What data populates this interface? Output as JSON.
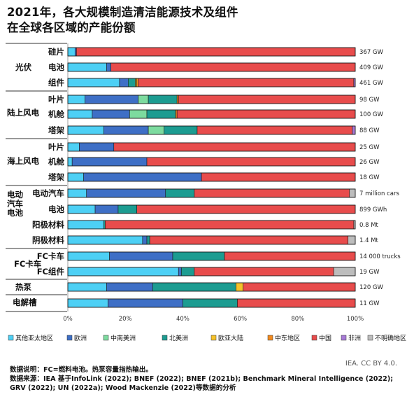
{
  "title": "2021年，各大规模制造清洁能源技术及组件\n在全球各区域的产能份额",
  "credit": "IEA. CC BY 4.0.",
  "notes": [
    "数据说明：FC=燃料电池。热泵容量指热输出。",
    "数据来源：IEA 基于InfoLink (2022); BNEF (2022); BNEF (2021b); Benchmark Mineral Intelligence (2022); GRV (2022); UN (2022a); Wood Mackenzie (2022)等数据的分析"
  ],
  "chart_data": {
    "type": "bar",
    "orientation": "horizontal",
    "stacked": "100%",
    "x_ticks": [
      "0%",
      "20%",
      "40%",
      "60%",
      "80%",
      "100%"
    ],
    "xlim": [
      0,
      100
    ],
    "grid": false,
    "legend_position": "bottom",
    "series": [
      {
        "name": "其他亚太地区",
        "color": "#4dd0f5"
      },
      {
        "name": "欧洲",
        "color": "#3e6fc6"
      },
      {
        "name": "中南美洲",
        "color": "#7ddb9f"
      },
      {
        "name": "北美洲",
        "color": "#1c9c91"
      },
      {
        "name": "欧亚大陆",
        "color": "#f6c22a"
      },
      {
        "name": "中东地区",
        "color": "#f28a1e"
      },
      {
        "name": "中国",
        "color": "#e84c4c"
      },
      {
        "name": "非洲",
        "color": "#a77ad6"
      },
      {
        "name": "不明确地区",
        "color": "#bdbdbd"
      }
    ],
    "groups": [
      {
        "label": "光伏",
        "rows": [
          0,
          1,
          2
        ]
      },
      {
        "label": "陆上风电",
        "rows": [
          3,
          4,
          5
        ]
      },
      {
        "label": "海上风电",
        "rows": [
          6,
          7,
          8
        ]
      },
      {
        "label": "电动\n汽车\n电池",
        "rows": [
          9,
          10,
          11,
          12
        ]
      },
      {
        "label": "FC卡车",
        "rows": [
          13,
          14
        ]
      },
      {
        "label": "热泵",
        "rows": [
          15
        ]
      },
      {
        "label": "电解槽",
        "rows": [
          16
        ]
      }
    ],
    "rows": [
      {
        "label": "硅片",
        "total": "367 GW",
        "values": [
          2.5,
          0.5,
          0,
          0,
          0,
          0,
          97,
          0,
          0
        ]
      },
      {
        "label": "电池",
        "total": "409 GW",
        "values": [
          13.5,
          1.5,
          0,
          0,
          0,
          0,
          85,
          0,
          0
        ]
      },
      {
        "label": "组件",
        "total": "461 GW",
        "values": [
          18,
          3,
          0,
          2.5,
          0.5,
          0.5,
          75,
          0.5,
          0
        ]
      },
      {
        "label": "叶片",
        "total": "98 GW",
        "values": [
          6,
          18.5,
          3.5,
          10,
          0,
          0.5,
          61.5,
          0,
          0
        ]
      },
      {
        "label": "机舱",
        "total": "100 GW",
        "values": [
          8.5,
          13,
          6,
          10,
          0,
          0.5,
          62,
          0,
          0
        ]
      },
      {
        "label": "塔架",
        "total": "88 GW",
        "values": [
          12.5,
          15.5,
          5.5,
          11.5,
          0,
          0,
          54,
          1,
          0
        ]
      },
      {
        "label": "叶片",
        "total": "25 GW",
        "values": [
          4,
          12,
          0,
          0,
          0,
          0,
          84,
          0,
          0
        ]
      },
      {
        "label": "机舱",
        "total": "26 GW",
        "values": [
          1.5,
          26,
          0,
          0,
          0,
          0,
          72.5,
          0,
          0
        ]
      },
      {
        "label": "塔架",
        "total": "18 GW",
        "values": [
          5.5,
          41,
          0,
          0,
          0,
          0,
          53.5,
          0,
          0
        ]
      },
      {
        "label": "电动汽车",
        "total": "7 million cars",
        "values": [
          6.5,
          27.5,
          0,
          10,
          0,
          0,
          54,
          0,
          2
        ]
      },
      {
        "label": "电池",
        "total": "899 GWh",
        "values": [
          9.5,
          8,
          0,
          6.5,
          0,
          0,
          76,
          0,
          0
        ]
      },
      {
        "label": "阳极材料",
        "total": "0.8 Mt",
        "values": [
          12.5,
          0,
          0,
          0.5,
          0,
          0,
          86.5,
          0,
          0.5
        ]
      },
      {
        "label": "阴极材料",
        "total": "1.4 Mt",
        "values": [
          26,
          1.5,
          0,
          1,
          0,
          0,
          69,
          0,
          2.5
        ]
      },
      {
        "label": "FC卡车",
        "total": "14 000 trucks",
        "values": [
          14.5,
          22,
          0,
          18,
          0,
          0,
          45.5,
          0,
          0
        ]
      },
      {
        "label": "FC组件",
        "total": "19 GW",
        "values": [
          38.5,
          1,
          0,
          4.5,
          0,
          0,
          48.5,
          0,
          7.5
        ]
      },
      {
        "label": "",
        "total": "120 GW",
        "values": [
          13.5,
          16,
          0,
          29,
          2.5,
          0,
          39,
          0,
          0
        ]
      },
      {
        "label": "",
        "total": "11 GW",
        "values": [
          14,
          26,
          0,
          19,
          0,
          0,
          41,
          0,
          0
        ]
      }
    ]
  }
}
